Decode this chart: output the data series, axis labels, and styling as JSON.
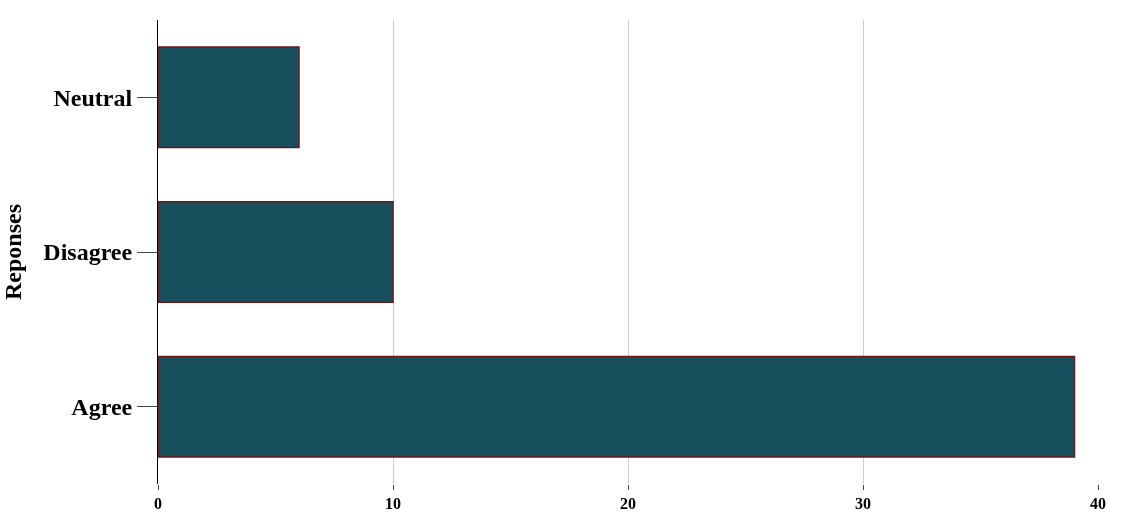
{
  "chart_data": {
    "type": "bar",
    "orientation": "horizontal",
    "ylabel": "Reponses",
    "categories": [
      "Neutral",
      "Disagree",
      "Agree"
    ],
    "values": [
      6,
      10,
      39
    ],
    "color": "#174f5c",
    "xlim": [
      0,
      40
    ],
    "xticks": [
      0,
      10,
      20,
      30,
      40
    ],
    "grid": "x",
    "legend": false
  }
}
